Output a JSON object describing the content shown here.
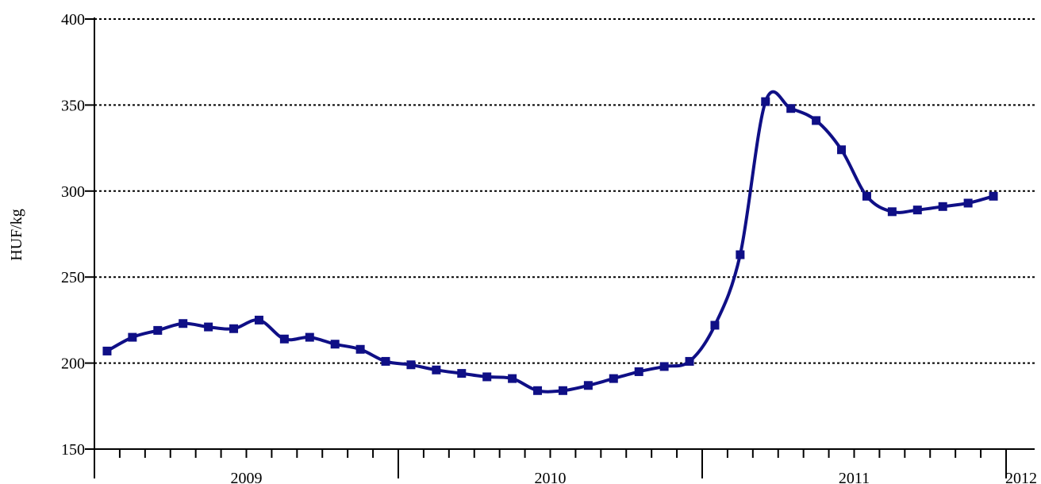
{
  "chart_data": {
    "type": "line",
    "title": "",
    "xlabel": "",
    "ylabel": "HUF/kg",
    "ylim": [
      150,
      400
    ],
    "yticks": [
      150,
      200,
      250,
      300,
      350,
      400
    ],
    "grid": "horizontal dotted",
    "legend": "none",
    "year_labels": [
      "2009",
      "2010",
      "2011",
      "2012"
    ],
    "x": [
      "2009-01",
      "2009-02",
      "2009-03",
      "2009-04",
      "2009-05",
      "2009-06",
      "2009-07",
      "2009-08",
      "2009-09",
      "2009-10",
      "2009-11",
      "2009-12",
      "2010-01",
      "2010-02",
      "2010-03",
      "2010-04",
      "2010-05",
      "2010-06",
      "2010-07",
      "2010-08",
      "2010-09",
      "2010-10",
      "2010-11",
      "2010-12",
      "2011-01",
      "2011-02",
      "2011-03",
      "2011-04",
      "2011-05",
      "2011-06",
      "2011-07",
      "2011-08",
      "2011-09",
      "2011-10",
      "2011-11",
      "2011-12"
    ],
    "series": [
      {
        "color": "#0f0f86",
        "values": [
          207,
          215,
          219,
          223,
          221,
          220,
          225,
          214,
          215,
          211,
          208,
          201,
          199,
          196,
          194,
          192,
          191,
          184,
          184,
          187,
          191,
          195,
          198,
          201,
          222,
          263,
          352,
          348,
          341,
          324,
          297,
          288,
          289,
          291,
          293,
          297
        ]
      }
    ]
  }
}
